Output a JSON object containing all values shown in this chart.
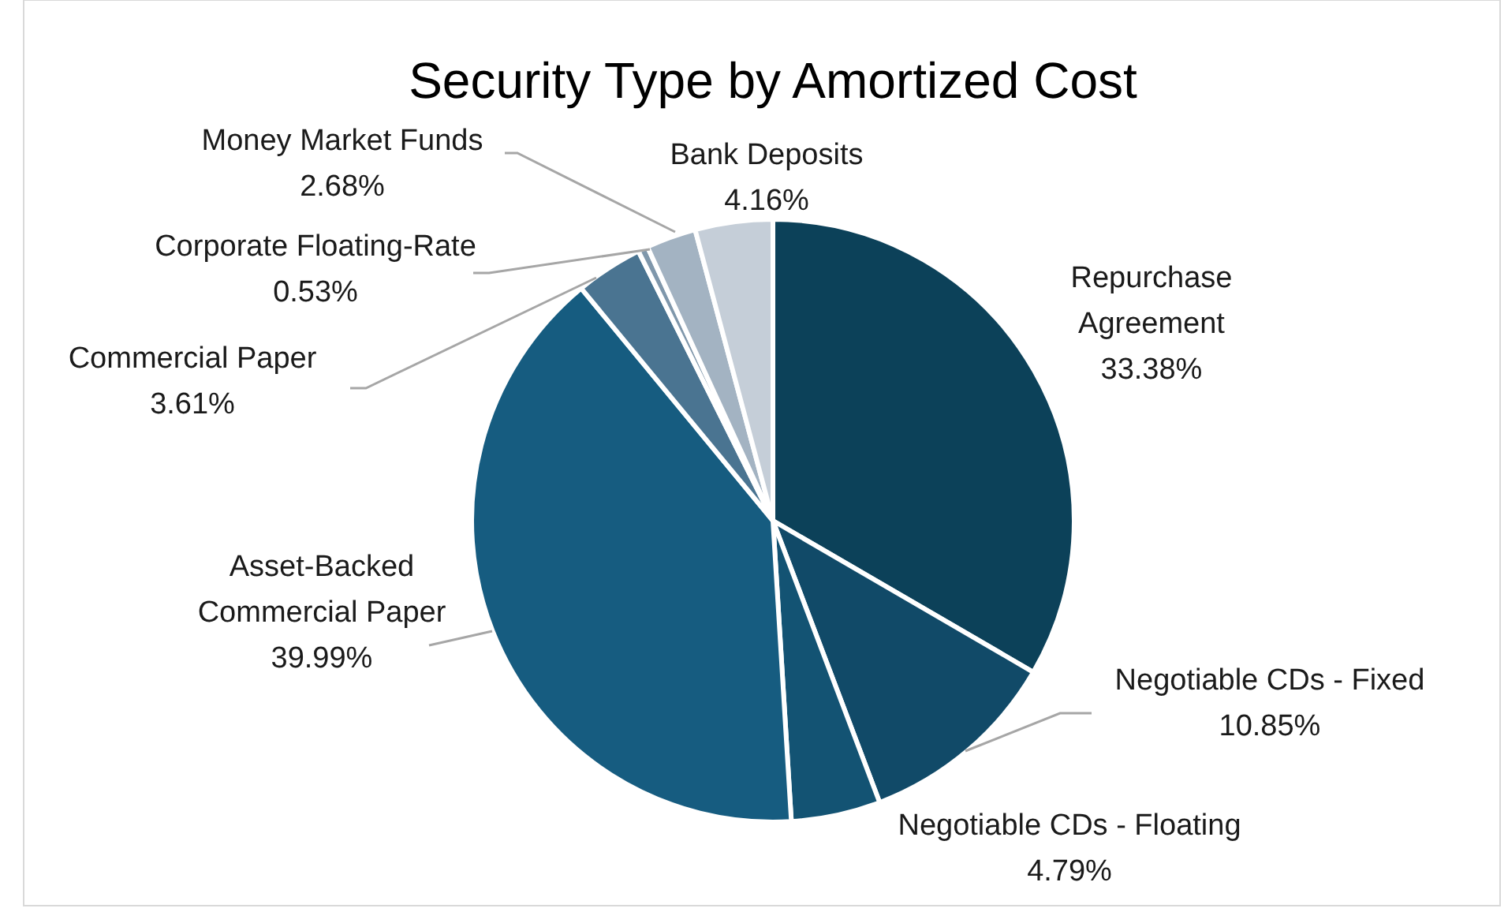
{
  "chart_data": {
    "type": "pie",
    "title": "Security Type by Amortized Cost",
    "categories": [
      "Repurchase Agreement",
      "Negotiable CDs - Fixed",
      "Negotiable CDs - Floating",
      "Asset-Backed Commercial Paper",
      "Commercial Paper",
      "Corporate Floating-Rate",
      "Money Market Funds",
      "Bank Deposits"
    ],
    "values": [
      33.38,
      10.85,
      4.79,
      39.99,
      3.61,
      0.53,
      2.68,
      4.16
    ],
    "colors": [
      "#0c4159",
      "#114a68",
      "#135373",
      "#165c80",
      "#4a7491",
      "#7f97ab",
      "#a3b3c2",
      "#c5ced8"
    ],
    "value_labels": [
      "33.38%",
      "10.85%",
      "4.79%",
      "39.99%",
      "3.61%",
      "0.53%",
      "2.68%",
      "4.16%"
    ]
  }
}
